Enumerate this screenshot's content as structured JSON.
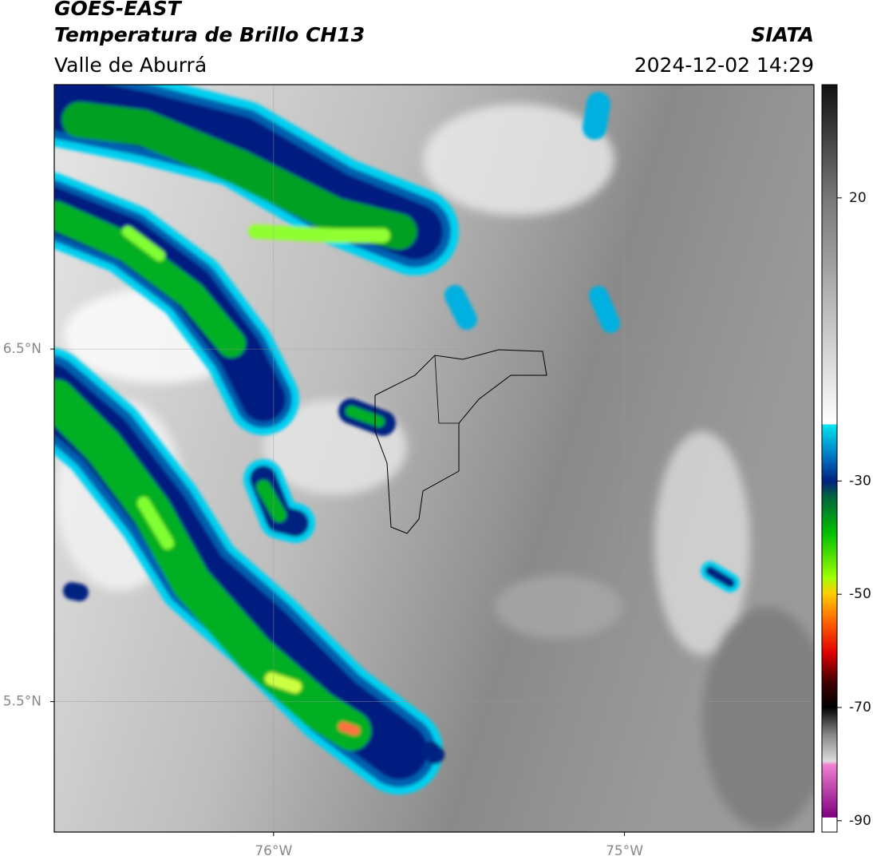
{
  "header": {
    "title": "GOES-EAST",
    "subtitle": "Temperatura de Brillo CH13",
    "source": "SIATA",
    "region": "Valle de Aburrá",
    "datetime": "2024-12-02 14:29"
  },
  "map": {
    "xlim": [
      -76.625,
      -74.46
    ],
    "ylim": [
      5.13,
      7.25
    ],
    "xticks": [
      {
        "value": -76,
        "label": "76°W"
      },
      {
        "value": -75,
        "label": "75°W"
      }
    ],
    "yticks": [
      {
        "value": 6.5,
        "label": "6.5°N"
      },
      {
        "value": 5.5,
        "label": "5.5°N"
      }
    ],
    "grid": true
  },
  "colorbar": {
    "lim": [
      -92,
      40
    ],
    "ticks": [
      20,
      -30,
      -50,
      -70,
      -90
    ]
  }
}
